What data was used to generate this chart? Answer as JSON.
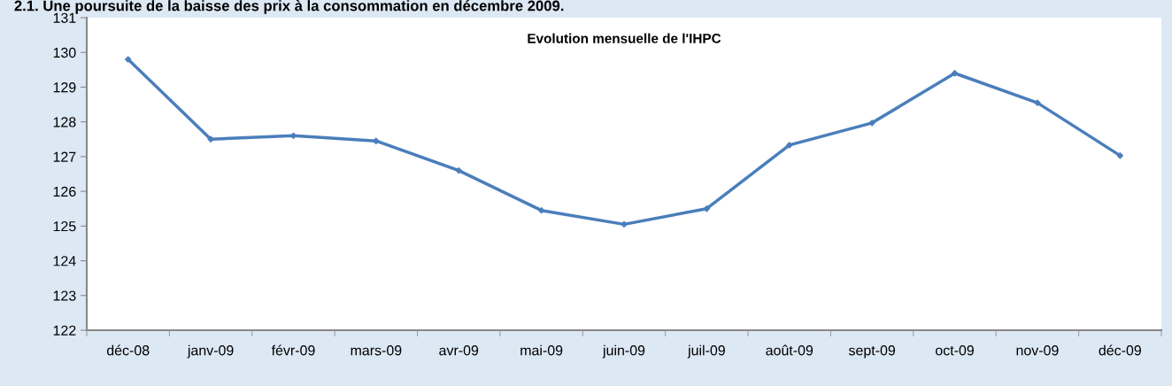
{
  "chart_data": {
    "type": "line",
    "title": "Evolution mensuelle de l'IHPC",
    "annotations": [
      "2.1. Une poursuite de la baisse des prix à la consommation en décembre 2009."
    ],
    "categories": [
      "déc-08",
      "janv-09",
      "févr-09",
      "mars-09",
      "avr-09",
      "mai-09",
      "juin-09",
      "juil-09",
      "août-09",
      "sept-09",
      "oct-09",
      "nov-09",
      "déc-09"
    ],
    "series": [
      {
        "color": "#4a7ebb",
        "values": [
          129.8,
          127.5,
          127.6,
          127.45,
          126.6,
          125.45,
          125.05,
          125.5,
          127.33,
          127.97,
          129.4,
          128.55,
          127.03
        ]
      }
    ],
    "ylim": [
      122,
      131
    ],
    "yticks": [
      122,
      123,
      124,
      125,
      126,
      127,
      128,
      129,
      130,
      131
    ],
    "grid": false,
    "marker": "diamond",
    "line_style": "solid"
  }
}
